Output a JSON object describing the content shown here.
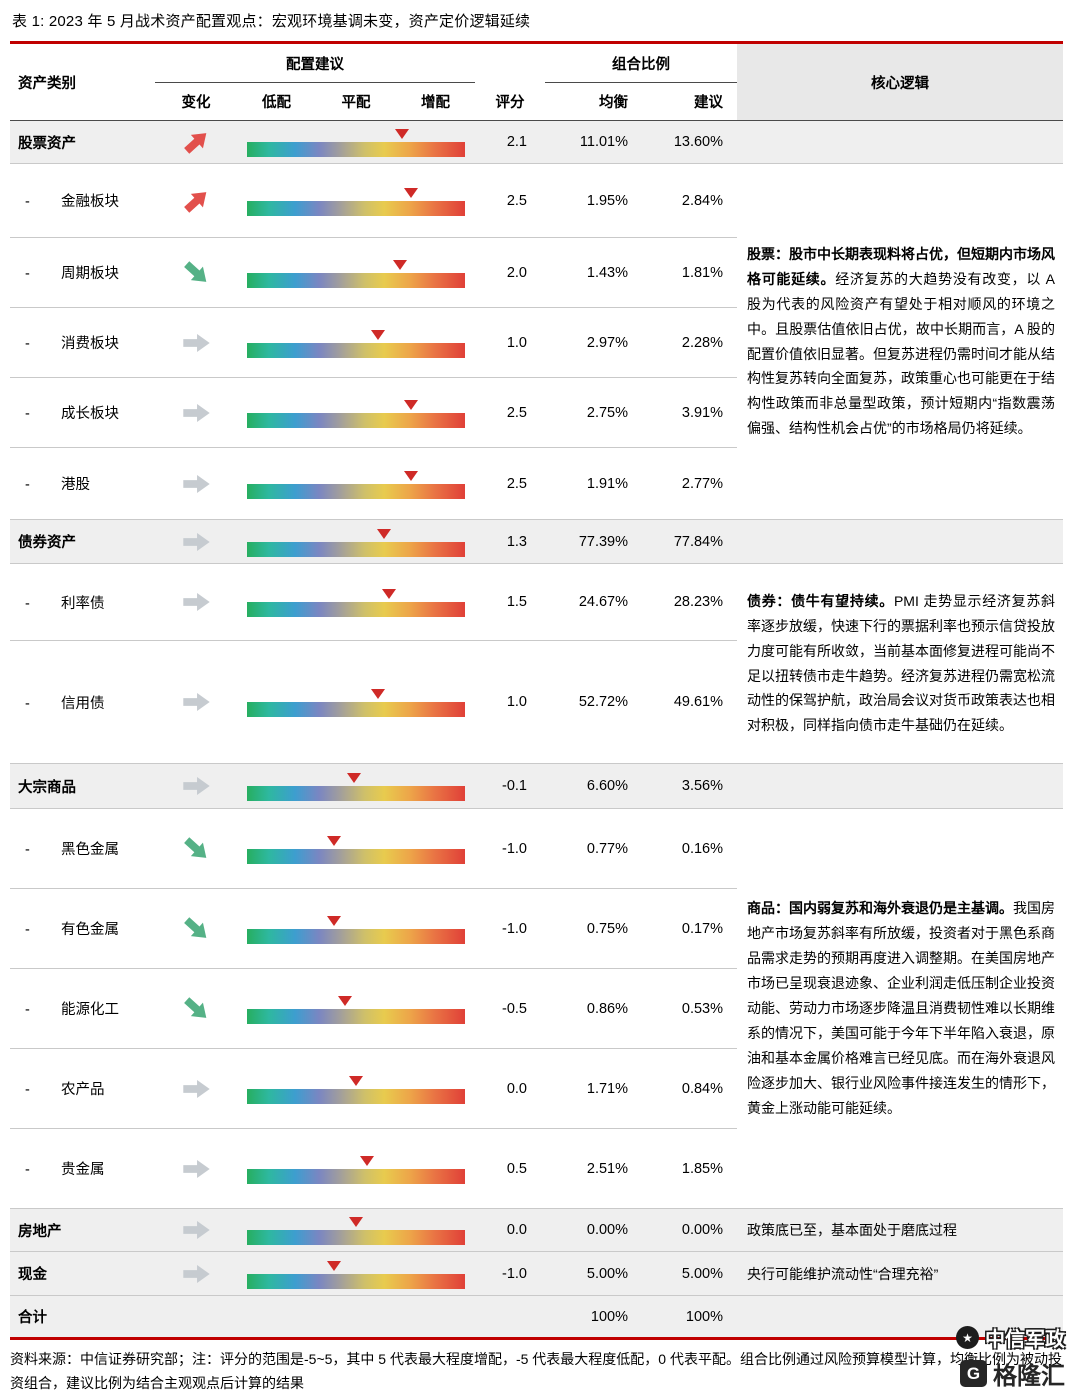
{
  "title": "表 1: 2023 年 5 月战术资产配置观点：宏观环境基调未变，资产定价逻辑延续",
  "header": {
    "asset_class": "资产类别",
    "allocation_advice": "配置建议",
    "portfolio_ratio": "组合比例",
    "core_logic": "核心逻辑",
    "change": "变化",
    "underweight": "低配",
    "neutral": "平配",
    "overweight": "增配",
    "score": "评分",
    "balanced": "均衡",
    "suggested": "建议"
  },
  "sub_bullet": "-",
  "score_scale": {
    "min": -5,
    "max": 5
  },
  "rows": [
    {
      "name": "股票资产",
      "level": "major",
      "change": "up",
      "score": "2.1",
      "balanced": "11.01%",
      "suggested": "13.60%"
    },
    {
      "name": "金融板块",
      "level": "sub",
      "change": "up",
      "score": "2.5",
      "balanced": "1.95%",
      "suggested": "2.84%"
    },
    {
      "name": "周期板块",
      "level": "sub",
      "change": "down",
      "score": "2.0",
      "balanced": "1.43%",
      "suggested": "1.81%"
    },
    {
      "name": "消费板块",
      "level": "sub",
      "change": "flat",
      "score": "1.0",
      "balanced": "2.97%",
      "suggested": "2.28%"
    },
    {
      "name": "成长板块",
      "level": "sub",
      "change": "flat",
      "score": "2.5",
      "balanced": "2.75%",
      "suggested": "3.91%"
    },
    {
      "name": "港股",
      "level": "sub",
      "change": "flat",
      "score": "2.5",
      "balanced": "1.91%",
      "suggested": "2.77%"
    },
    {
      "name": "债券资产",
      "level": "major",
      "change": "flat",
      "score": "1.3",
      "balanced": "77.39%",
      "suggested": "77.84%"
    },
    {
      "name": "利率债",
      "level": "sub",
      "change": "flat",
      "score": "1.5",
      "balanced": "24.67%",
      "suggested": "28.23%"
    },
    {
      "name": "信用债",
      "level": "sub",
      "change": "flat",
      "score": "1.0",
      "balanced": "52.72%",
      "suggested": "49.61%"
    },
    {
      "name": "大宗商品",
      "level": "major",
      "change": "flat",
      "score": "-0.1",
      "balanced": "6.60%",
      "suggested": "3.56%"
    },
    {
      "name": "黑色金属",
      "level": "sub",
      "change": "down",
      "score": "-1.0",
      "balanced": "0.77%",
      "suggested": "0.16%"
    },
    {
      "name": "有色金属",
      "level": "sub",
      "change": "down",
      "score": "-1.0",
      "balanced": "0.75%",
      "suggested": "0.17%"
    },
    {
      "name": "能源化工",
      "level": "sub",
      "change": "down",
      "score": "-0.5",
      "balanced": "0.86%",
      "suggested": "0.53%"
    },
    {
      "name": "农产品",
      "level": "sub",
      "change": "flat",
      "score": "0.0",
      "balanced": "1.71%",
      "suggested": "0.84%"
    },
    {
      "name": "贵金属",
      "level": "sub",
      "change": "flat",
      "score": "0.5",
      "balanced": "2.51%",
      "suggested": "1.85%"
    },
    {
      "name": "房地产",
      "level": "major",
      "change": "flat",
      "score": "0.0",
      "balanced": "0.00%",
      "suggested": "0.00%"
    },
    {
      "name": "现金",
      "level": "major",
      "change": "flat",
      "score": "-1.0",
      "balanced": "5.00%",
      "suggested": "5.00%"
    },
    {
      "name": "合计",
      "level": "major",
      "change": null,
      "score": "",
      "balanced": "100%",
      "suggested": "100%"
    }
  ],
  "logic_blocks": {
    "equity": {
      "bold": "股票：股市中长期表现料将占优，但短期内市场风格可能延续。",
      "rest": "经济复苏的大趋势没有改变，以 A 股为代表的风险资产有望处于相对顺风的环境之中。且股票估值依旧占优，故中长期而言，A 股的配置价值依旧显著。但复苏进程仍需时间才能从结构性复苏转向全面复苏，政策重心也可能更在于结构性政策而非总量型政策，预计短期内“指数震荡偏强、结构性机会占优”的市场格局仍将延续。"
    },
    "bond": {
      "bold": "债券：债牛有望持续。",
      "rest": "PMI 走势显示经济复苏斜率逐步放缓，快速下行的票据利率也预示信贷投放力度可能有所收敛，当前基本面修复进程可能尚不足以扭转债市走牛趋势。经济复苏进程仍需宽松流动性的保驾护航，政治局会议对货币政策表达也相对积极，同样指向债市走牛基础仍在延续。"
    },
    "commodity": {
      "bold": "商品：国内弱复苏和海外衰退仍是主基调。",
      "rest": "我国房地产市场复苏斜率有所放缓，投资者对于黑色系商品需求走势的预期再度进入调整期。在美国房地产市场已呈现衰退迹象、企业利润走低压制企业投资动能、劳动力市场逐步降温且消费韧性难以长期维系的情况下，美国可能于今年下半年陷入衰退，原油和基本金属价格难言已经见底。而在海外衰退风险逐步加大、银行业风险事件接连发生的情形下，黄金上涨动能可能延续。"
    },
    "real_estate": "政策底已至，基本面处于磨底过程",
    "cash": "央行可能维护流动性“合理充裕”"
  },
  "footnote": "资料来源：中信证券研究部；注：评分的范围是-5~5，其中 5 代表最大程度增配，-5 代表最大程度低配，0 代表平配。组合比例通过风险预算模型计算，均衡比例为被动投资组合，建议比例为结合主观观点后计算的结果",
  "watermark": {
    "line1": "中信军政",
    "line1_icon": "★",
    "line2": "格隆汇",
    "line2_icon": "G"
  },
  "colors": {
    "accent_red": "#c00000",
    "marker_red": "#cf2a27",
    "arrow_up": "#e2504c",
    "arrow_down": "#55b186",
    "arrow_flat": "#c6cbd0",
    "band_gray": "#efefef"
  }
}
